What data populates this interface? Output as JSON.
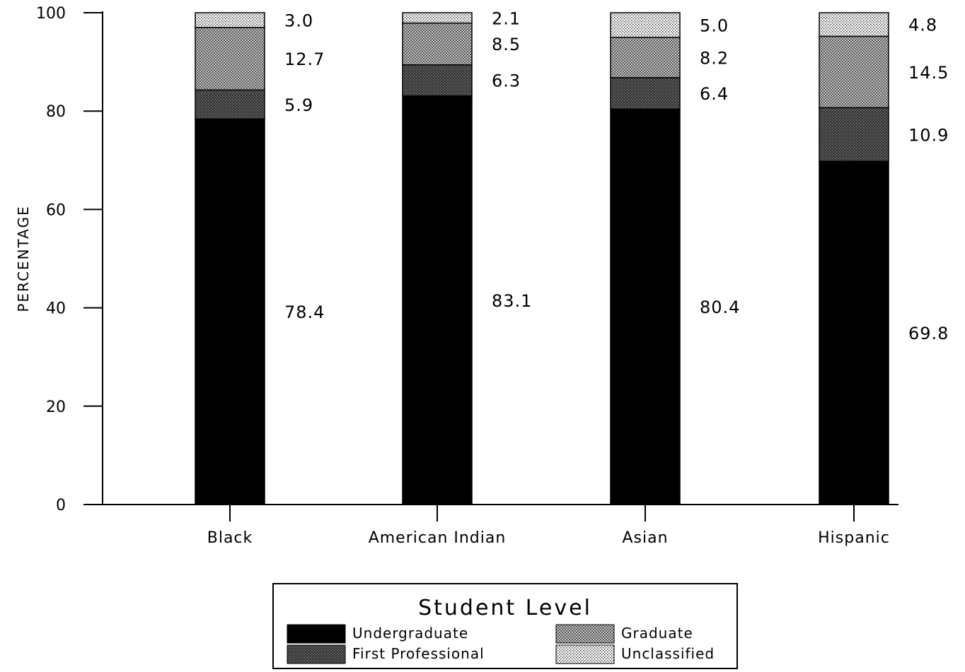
{
  "chart_data": {
    "type": "bar",
    "stacked": true,
    "categories": [
      "Black",
      "American Indian",
      "Asian",
      "Hispanic"
    ],
    "series": [
      {
        "name": "Undergraduate",
        "values": [
          78.4,
          83.1,
          80.4,
          69.8
        ],
        "pattern": "solid",
        "color": "#000000"
      },
      {
        "name": "First Professional",
        "values": [
          5.9,
          6.3,
          6.4,
          10.9
        ],
        "pattern": "dark-dots",
        "color": "#333333"
      },
      {
        "name": "Graduate",
        "values": [
          12.7,
          8.5,
          8.2,
          14.5
        ],
        "pattern": "medium-dots",
        "color": "#9a9a9a"
      },
      {
        "name": "Unclassified",
        "values": [
          3.0,
          2.1,
          5.0,
          4.8
        ],
        "pattern": "light-dots",
        "color": "#dcdcdc"
      }
    ],
    "data_labels": [
      [
        "78.4",
        "83.1",
        "80.4",
        "69.8"
      ],
      [
        "5.9",
        "6.3",
        "6.4",
        "10.9"
      ],
      [
        "12.7",
        "8.5",
        "8.2",
        "14.5"
      ],
      [
        "3.0",
        "2.1",
        "5.0",
        "4.8"
      ]
    ],
    "ylabel": "PERCENTAGE",
    "xlabel": "",
    "ylim": [
      0,
      100
    ],
    "yticks": [
      0,
      20,
      40,
      60,
      80,
      100
    ],
    "ytick_labels": [
      "0",
      "20",
      "40",
      "60",
      "80",
      "100"
    ],
    "legend": {
      "title": "Student Level",
      "placement": "bottom-center",
      "entries": [
        "Undergraduate",
        "Graduate",
        "First Professional",
        "Unclassified"
      ]
    },
    "grid": false
  }
}
